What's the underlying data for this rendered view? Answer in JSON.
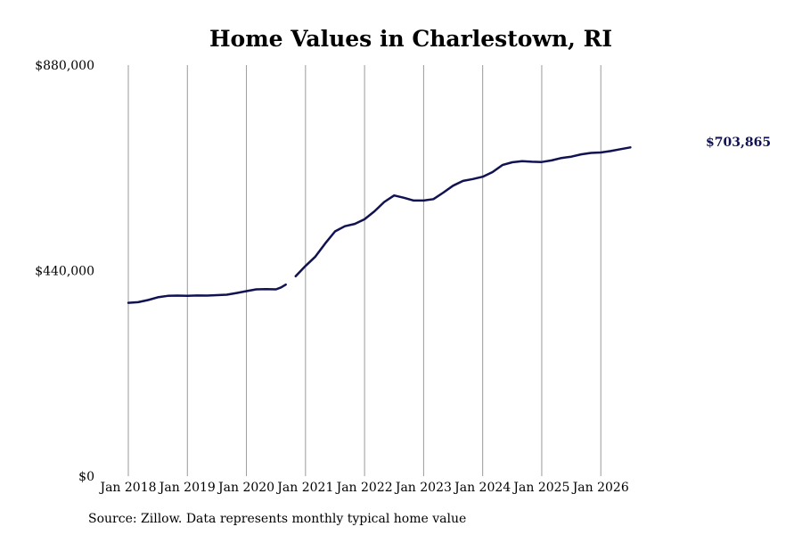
{
  "chart_data": {
    "type": "line",
    "title": "Home Values in Charlestown, RI",
    "xlabel": "",
    "ylabel": "",
    "ylim": [
      0,
      880000
    ],
    "yticks": [
      {
        "value": 0,
        "label": "$0"
      },
      {
        "value": 440000,
        "label": "$440,000"
      },
      {
        "value": 880000,
        "label": "$880,000"
      }
    ],
    "xticks": [
      {
        "date": "2018-01",
        "label": "Jan 2018"
      },
      {
        "date": "2019-01",
        "label": "Jan 2019"
      },
      {
        "date": "2020-01",
        "label": "Jan 2020"
      },
      {
        "date": "2021-01",
        "label": "Jan 2021"
      },
      {
        "date": "2022-01",
        "label": "Jan 2022"
      },
      {
        "date": "2023-01",
        "label": "Jan 2023"
      },
      {
        "date": "2024-01",
        "label": "Jan 2024"
      },
      {
        "date": "2025-01",
        "label": "Jan 2025"
      },
      {
        "date": "2026-01",
        "label": "Jan 2026"
      }
    ],
    "grid": {
      "vertical": true,
      "horizontal": false
    },
    "end_label": "$703,865",
    "series": [
      {
        "color": "#101252",
        "segments": [
          [
            {
              "date": "2018-01",
              "y": 371000
            },
            {
              "date": "2018-03",
              "y": 372500
            },
            {
              "date": "2018-05",
              "y": 377000
            },
            {
              "date": "2018-07",
              "y": 383000
            },
            {
              "date": "2018-09",
              "y": 386000
            },
            {
              "date": "2018-11",
              "y": 386500
            },
            {
              "date": "2019-01",
              "y": 386000
            },
            {
              "date": "2019-03",
              "y": 386800
            },
            {
              "date": "2019-05",
              "y": 386600
            },
            {
              "date": "2019-07",
              "y": 387500
            },
            {
              "date": "2019-09",
              "y": 388500
            },
            {
              "date": "2019-11",
              "y": 392000
            },
            {
              "date": "2020-01",
              "y": 396000
            },
            {
              "date": "2020-03",
              "y": 400000
            },
            {
              "date": "2020-05",
              "y": 400500
            },
            {
              "date": "2020-07",
              "y": 400000
            },
            {
              "date": "2020-08",
              "y": 404000
            },
            {
              "date": "2020-09",
              "y": 410000
            }
          ],
          [
            {
              "date": "2020-11",
              "y": 428000
            },
            {
              "date": "2021-01",
              "y": 450000
            },
            {
              "date": "2021-03",
              "y": 470000
            },
            {
              "date": "2021-05",
              "y": 498000
            },
            {
              "date": "2021-07",
              "y": 524000
            },
            {
              "date": "2021-09",
              "y": 535000
            },
            {
              "date": "2021-11",
              "y": 540000
            },
            {
              "date": "2022-01",
              "y": 550000
            },
            {
              "date": "2022-03",
              "y": 567000
            },
            {
              "date": "2022-05",
              "y": 587000
            },
            {
              "date": "2022-07",
              "y": 601000
            },
            {
              "date": "2022-09",
              "y": 596000
            },
            {
              "date": "2022-11",
              "y": 590000
            },
            {
              "date": "2023-01",
              "y": 590000
            },
            {
              "date": "2023-03",
              "y": 593000
            },
            {
              "date": "2023-05",
              "y": 607000
            },
            {
              "date": "2023-07",
              "y": 622000
            },
            {
              "date": "2023-09",
              "y": 632000
            },
            {
              "date": "2023-11",
              "y": 636000
            },
            {
              "date": "2024-01",
              "y": 641000
            },
            {
              "date": "2024-03",
              "y": 651000
            },
            {
              "date": "2024-05",
              "y": 666000
            },
            {
              "date": "2024-07",
              "y": 672000
            },
            {
              "date": "2024-09",
              "y": 674500
            },
            {
              "date": "2024-11",
              "y": 673000
            },
            {
              "date": "2025-01",
              "y": 672500
            },
            {
              "date": "2025-03",
              "y": 676000
            },
            {
              "date": "2025-05",
              "y": 681000
            },
            {
              "date": "2025-07",
              "y": 684000
            },
            {
              "date": "2025-09",
              "y": 689000
            },
            {
              "date": "2025-11",
              "y": 692000
            },
            {
              "date": "2026-01",
              "y": 693000
            },
            {
              "date": "2026-03",
              "y": 696000
            },
            {
              "date": "2026-05",
              "y": 700000
            },
            {
              "date": "2026-07",
              "y": 703865
            }
          ]
        ]
      }
    ]
  },
  "source": "Source: Zillow. Data represents monthly typical home value"
}
